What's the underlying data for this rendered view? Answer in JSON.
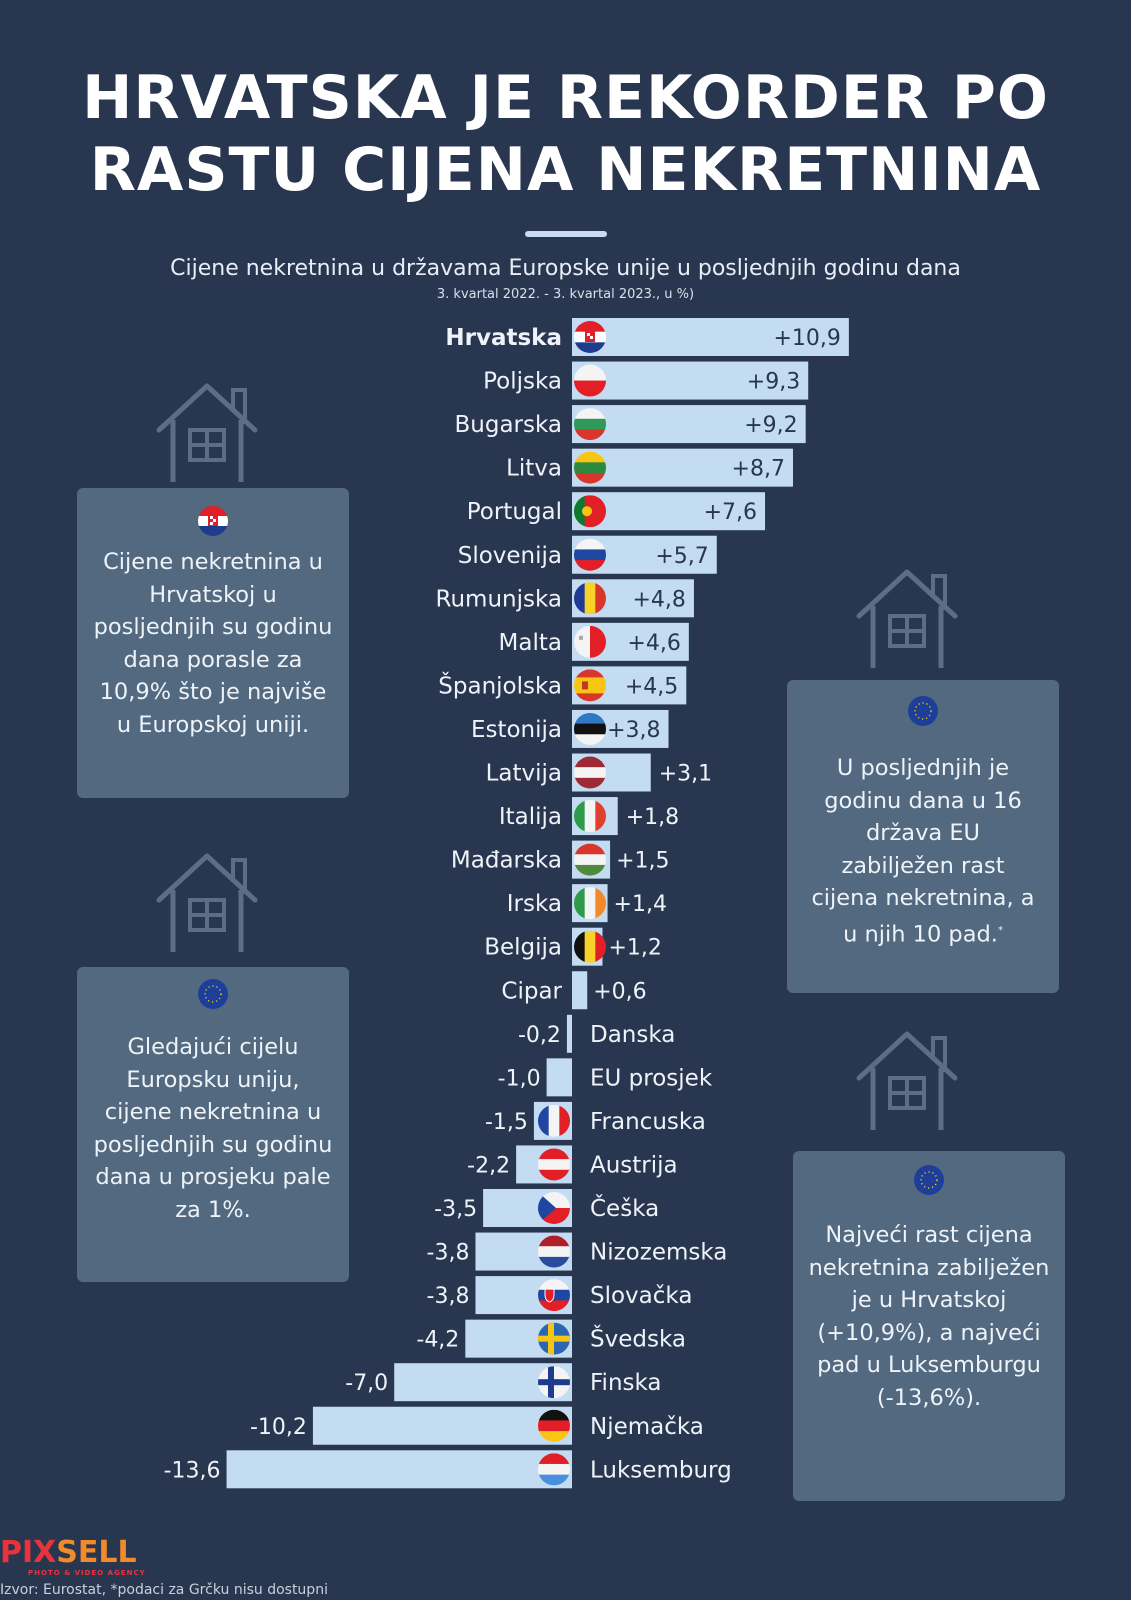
{
  "title_line1": "HRVATSKA JE REKORDER PO",
  "title_line2": "RASTU CIJENA NEKRETNINA",
  "subtitle": "Cijene nekretnina u državama Europske unije u posljednjih godinu dana",
  "subnote": "3. kvartal 2022. - 3. kvartal 2023., u %)",
  "colors": {
    "background": "#28364f",
    "bar": "#c4dcf2",
    "card": "#52697f",
    "text": "#eef3f9",
    "value_inside": "#28364f"
  },
  "cards": [
    {
      "flag": "croatia-flag-icon",
      "text": "Cijene nekretnina u Hrvatskoj u posljednjih su godinu dana porasle za 10,9% što je najviše u Europskoj uniji."
    },
    {
      "flag": "eu-flag-icon",
      "text": "U posljednjih je godinu dana u 16 država EU zabilježen rast cijena nekretnina, a u njih 10 pad.",
      "footnote_mark": "*"
    },
    {
      "flag": "eu-flag-icon",
      "text": "Gledajući cijelu Europsku uniju, cijene nekretnina u posljednjih su godinu dana u prosjeku pale za 1%."
    },
    {
      "flag": "eu-flag-icon",
      "text": "Najveći rast cijena nekretnina zabilježen je u Hrvatskoj (+10,9%), a najveći pad u Luksemburgu (-13,6%)."
    }
  ],
  "logo": {
    "part1": "PIX",
    "part2": "SELL",
    "tagline": "PHOTO & VIDEO AGENCY"
  },
  "source": "Izvor: Eurostat, *podaci za Grčku nisu dostupni",
  "chart_data": {
    "type": "bar",
    "orientation": "horizontal",
    "title": "Cijene nekretnina u državama Europske unije u posljednjih godinu dana",
    "subtitle": "3. kvartal 2022. - 3. kvartal 2023., u %)",
    "xlabel": "",
    "ylabel": "",
    "unit": "%",
    "grid": false,
    "xlim": [
      -13.6,
      10.9
    ],
    "categories": [
      "Hrvatska",
      "Poljska",
      "Bugarska",
      "Litva",
      "Portugal",
      "Slovenija",
      "Rumunjska",
      "Malta",
      "Španjolska",
      "Estonija",
      "Latvija",
      "Italija",
      "Mađarska",
      "Irska",
      "Belgija",
      "Cipar",
      "Danska",
      "EU prosjek",
      "Francuska",
      "Austrija",
      "Češka",
      "Nizozemska",
      "Slovačka",
      "Švedska",
      "Finska",
      "Njemačka",
      "Luksemburg"
    ],
    "values": [
      10.9,
      9.3,
      9.2,
      8.7,
      7.6,
      5.7,
      4.8,
      4.6,
      4.5,
      3.8,
      3.1,
      1.8,
      1.5,
      1.4,
      1.2,
      0.6,
      -0.2,
      -1.0,
      -1.5,
      -2.2,
      -3.5,
      -3.8,
      -3.8,
      -4.2,
      -7.0,
      -10.2,
      -13.6
    ],
    "labels": [
      "+10,9",
      "+9,3",
      "+9,2",
      "+8,7",
      "+7,6",
      "+5,7",
      "+4,8",
      "+4,6",
      "+4,5",
      "+3,8",
      "+3,1",
      "+1,8",
      "+1,5",
      "+1,4",
      "+1,2",
      "+0,6",
      "-0,2",
      "-1,0",
      "-1,5",
      "-2,2",
      "-3,5",
      "-3,8",
      "-3,8",
      "-4,2",
      "-7,0",
      "-10,2",
      "-13,6"
    ],
    "highlight": "Hrvatska",
    "flags": [
      "hr",
      "pl",
      "bg",
      "lt",
      "pt",
      "si",
      "ro",
      "mt",
      "es",
      "ee",
      "lv",
      "it",
      "hu",
      "ie",
      "be",
      "",
      "",
      "",
      "fr",
      "at",
      "cz",
      "nl",
      "sk",
      "se",
      "fi",
      "de",
      "lu"
    ]
  }
}
